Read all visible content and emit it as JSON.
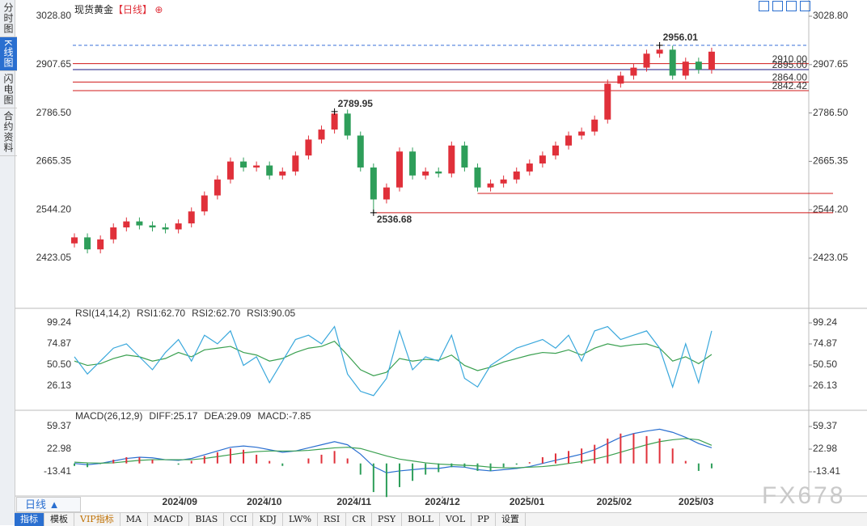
{
  "header": {
    "title": "现货黄金",
    "period": "【日线】"
  },
  "sidebar": [
    "分时图",
    "K线图",
    "闪电图",
    "合约资料"
  ],
  "period_button": "日线 ▲",
  "toolbar": [
    "指标",
    "模板",
    "VIP指标",
    "MA",
    "MACD",
    "BIAS",
    "CCI",
    "KDJ",
    "LW%",
    "RSI",
    "CR",
    "PSY",
    "BOLL",
    "VOL",
    "PP",
    "设置"
  ],
  "watermark": "FX678",
  "chart_data": [
    {
      "type": "candlestick",
      "up_color": "#e0303a",
      "down_color": "#2e9e5a",
      "open": [
        2460,
        2475,
        2445,
        2470,
        2500,
        2515,
        2505,
        2500,
        2495,
        2510,
        2540,
        2580,
        2620,
        2665,
        2650,
        2655,
        2630,
        2640,
        2680,
        2720,
        2745,
        2785,
        2730,
        2650,
        2570,
        2600,
        2690,
        2630,
        2640,
        2635,
        2705,
        2650,
        2600,
        2610,
        2620,
        2640,
        2660,
        2680,
        2705,
        2730,
        2740,
        2770,
        2860,
        2880,
        2900,
        2935,
        2945,
        2880,
        2915,
        2895
      ],
      "high": [
        2485,
        2485,
        2480,
        2510,
        2525,
        2525,
        2515,
        2510,
        2520,
        2550,
        2590,
        2630,
        2675,
        2675,
        2665,
        2665,
        2650,
        2690,
        2730,
        2755,
        2789.95,
        2795,
        2740,
        2660,
        2610,
        2700,
        2700,
        2650,
        2650,
        2715,
        2715,
        2660,
        2620,
        2630,
        2650,
        2670,
        2690,
        2715,
        2740,
        2750,
        2780,
        2870,
        2890,
        2910,
        2945,
        2956.01,
        2955,
        2925,
        2925,
        2950
      ],
      "low": [
        2450,
        2435,
        2435,
        2460,
        2490,
        2495,
        2490,
        2485,
        2485,
        2500,
        2530,
        2570,
        2610,
        2640,
        2640,
        2620,
        2620,
        2630,
        2670,
        2710,
        2735,
        2720,
        2640,
        2536.68,
        2560,
        2590,
        2620,
        2620,
        2625,
        2625,
        2640,
        2590,
        2590,
        2600,
        2610,
        2630,
        2650,
        2670,
        2695,
        2720,
        2730,
        2760,
        2850,
        2870,
        2890,
        2925,
        2870,
        2870,
        2885,
        2885
      ],
      "close": [
        2475,
        2445,
        2470,
        2500,
        2515,
        2505,
        2500,
        2495,
        2510,
        2540,
        2580,
        2620,
        2665,
        2650,
        2655,
        2630,
        2640,
        2680,
        2720,
        2745,
        2785,
        2730,
        2650,
        2570,
        2600,
        2690,
        2630,
        2640,
        2635,
        2705,
        2650,
        2600,
        2610,
        2620,
        2640,
        2660,
        2680,
        2705,
        2730,
        2740,
        2770,
        2860,
        2880,
        2900,
        2935,
        2945,
        2880,
        2915,
        2895,
        2940
      ],
      "ylim": [
        2303.5,
        3049.1
      ],
      "yticks": [
        {
          "value": 3028.8,
          "label": "3028.80"
        },
        {
          "value": 2907.65,
          "label": "2907.65"
        },
        {
          "value": 2786.5,
          "label": "2786.50"
        },
        {
          "value": 2665.35,
          "label": "2665.35"
        },
        {
          "value": 2544.2,
          "label": "2544.20"
        },
        {
          "value": 2423.05,
          "label": "2423.05"
        }
      ],
      "levels": [
        {
          "value": 2956.01,
          "color": "#3a6fd8",
          "dashed": true
        },
        {
          "value": 2910,
          "label": "2910.00",
          "color": "#d01818"
        },
        {
          "value": 2895,
          "label": "2895.00",
          "color": "#1a1a80"
        },
        {
          "value": 2864,
          "label": "2864.00",
          "color": "#d01818"
        },
        {
          "value": 2842.42,
          "label": "2842.42",
          "color": "#d01818"
        }
      ],
      "rays": [
        {
          "from": 23,
          "value": 2536.68,
          "color": "#d01818"
        },
        {
          "from": 31,
          "value": 2585,
          "color": "#d01818"
        }
      ],
      "annotations": [
        {
          "index": 45,
          "value": 2956.01,
          "label": "2956.01",
          "position": "above",
          "color": "#e0303a"
        },
        {
          "index": 20,
          "value": 2789.95,
          "label": "2789.95",
          "position": "above",
          "color": "#e0303a"
        },
        {
          "index": 23,
          "value": 2536.68,
          "label": "2536.68",
          "position": "below",
          "color": "#2e9e5a"
        }
      ]
    },
    {
      "type": "line",
      "title": "RSI(14,14,2)",
      "extra_legend": {
        "label": "RSI1:62.70",
        "color": "#2a7fd4"
      },
      "ylim": [
        1.76,
        112.4
      ],
      "yticks": [
        99.24,
        74.87,
        {
          "value": 50.5,
          "label": "50.50"
        },
        26.13
      ],
      "series": [
        {
          "name": "RSI2:62.70",
          "color": "#3aa050",
          "kind": "line",
          "values": [
            55,
            50,
            52,
            58,
            62,
            60,
            55,
            58,
            65,
            60,
            68,
            70,
            72,
            65,
            62,
            55,
            58,
            65,
            70,
            72,
            78,
            62,
            45,
            38,
            42,
            58,
            55,
            57,
            56,
            62,
            50,
            44,
            48,
            54,
            58,
            62,
            65,
            64,
            68,
            62,
            70,
            75,
            72,
            74,
            75,
            70,
            55,
            60,
            52,
            62.7
          ]
        },
        {
          "name": "RSI3:90.05",
          "color": "#3aa8dc",
          "kind": "line",
          "values": [
            60,
            40,
            55,
            70,
            75,
            60,
            45,
            65,
            80,
            55,
            85,
            75,
            90,
            50,
            60,
            30,
            55,
            80,
            85,
            75,
            95,
            40,
            20,
            15,
            35,
            90,
            45,
            60,
            55,
            85,
            35,
            25,
            50,
            60,
            70,
            75,
            80,
            70,
            85,
            55,
            90,
            95,
            80,
            85,
            90,
            70,
            25,
            75,
            30,
            90.05
          ]
        }
      ]
    },
    {
      "type": "line",
      "title": "MACD(26,12,9)",
      "ylim": [
        -51.1,
        78.9
      ],
      "yticks": [
        59.37,
        22.98,
        -13.41
      ],
      "xticks": [
        {
          "value": 8.1,
          "label": "2024/09"
        },
        {
          "value": 14.6,
          "label": "2024/10"
        },
        {
          "value": 21.5,
          "label": "2024/11"
        },
        {
          "value": 28.3,
          "label": "2024/12"
        },
        {
          "value": 34.8,
          "label": "2025/01"
        },
        {
          "value": 41.5,
          "label": "2025/02"
        },
        {
          "value": 47.8,
          "label": "2025/03"
        }
      ],
      "series": [
        {
          "name": "DIFF:25.17",
          "color": "#2a6fd0",
          "kind": "line",
          "values": [
            0,
            -2,
            0,
            4,
            8,
            10,
            9,
            6,
            5,
            8,
            14,
            20,
            26,
            28,
            26,
            22,
            18,
            20,
            25,
            30,
            35,
            30,
            15,
            -5,
            -15,
            -12,
            -10,
            -8,
            -8,
            -5,
            -6,
            -10,
            -12,
            -10,
            -8,
            -5,
            0,
            5,
            10,
            15,
            22,
            32,
            42,
            48,
            52,
            55,
            50,
            42,
            32,
            25.17
          ]
        },
        {
          "name": "DEA:29.09",
          "color": "#3aa050",
          "kind": "line",
          "values": [
            2,
            1,
            0.5,
            1,
            3,
            5,
            6,
            6,
            6,
            6,
            8,
            11,
            14,
            17,
            19,
            20,
            20,
            20,
            21,
            23,
            25,
            26,
            24,
            18,
            12,
            7,
            4,
            1,
            -1,
            -2,
            -3,
            -4,
            -6,
            -7,
            -7,
            -6,
            -5,
            -3,
            0,
            3,
            7,
            12,
            18,
            24,
            30,
            35,
            38,
            40,
            38,
            29.09
          ]
        },
        {
          "name": "MACD:-7.85",
          "color": "#2a7fd4",
          "kind": "bar",
          "up_color": "#e0303a",
          "down_color": "#2e9e5a",
          "values": [
            -4,
            -6,
            -1,
            6,
            10,
            10,
            6,
            0,
            -2,
            4,
            12,
            18,
            24,
            22,
            14,
            4,
            -4,
            0,
            8,
            14,
            20,
            8,
            -18,
            -46,
            -54,
            -38,
            -28,
            -18,
            -14,
            -6,
            -6,
            -12,
            -12,
            -6,
            -2,
            2,
            10,
            16,
            20,
            24,
            30,
            40,
            48,
            48,
            44,
            40,
            24,
            4,
            -12,
            -7.85
          ]
        }
      ]
    }
  ]
}
